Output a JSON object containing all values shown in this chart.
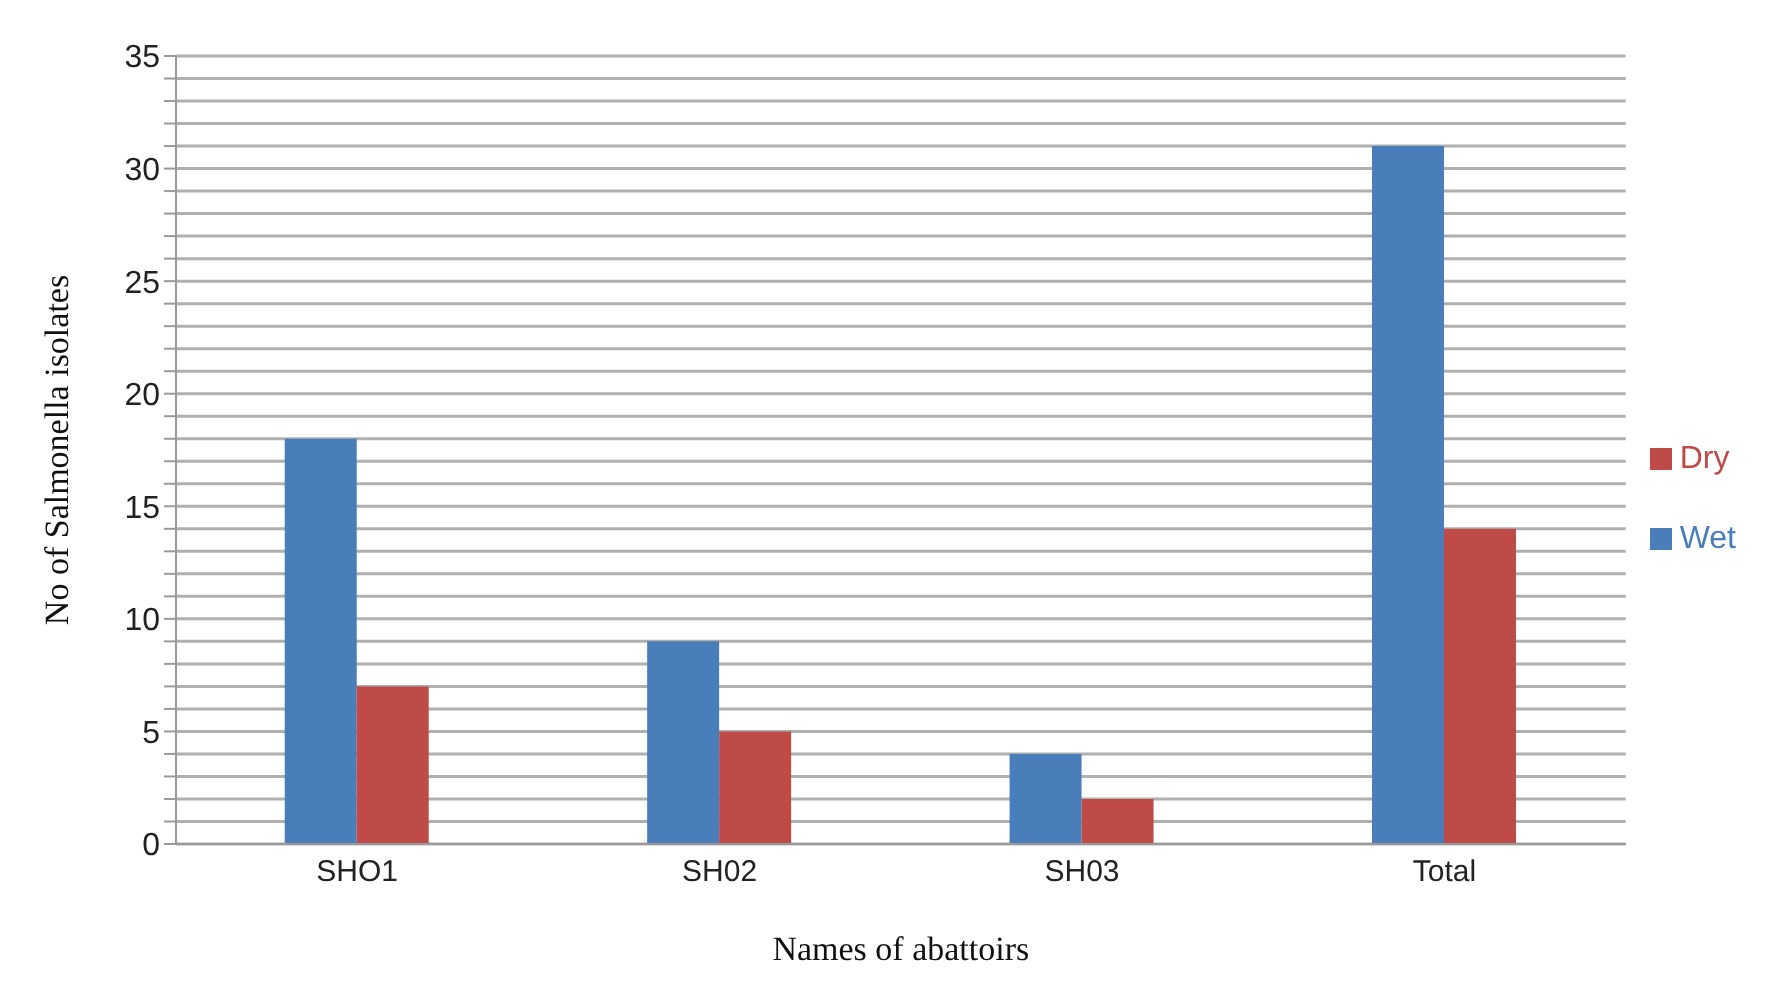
{
  "chart_data": {
    "type": "bar",
    "xlabel": "Names of abattoirs",
    "ylabel": "No of Salmonella isolates",
    "categories": [
      "SHO1",
      "SH02",
      "SH03",
      "Total"
    ],
    "series": [
      {
        "name": "Wet",
        "color": "#4a7ebb",
        "values": [
          18,
          9,
          4,
          31
        ]
      },
      {
        "name": "Dry",
        "color": "#be4b48",
        "values": [
          7,
          5,
          2,
          14
        ]
      }
    ],
    "ylim": [
      0,
      35
    ],
    "yticks": [
      0,
      {
        "value": 1,
        "label": null
      },
      {
        "value": 2,
        "label": null
      },
      {
        "value": 3,
        "label": null
      },
      {
        "value": 4,
        "label": null
      },
      5,
      {
        "value": 6,
        "label": null
      },
      {
        "value": 7,
        "label": null
      },
      {
        "value": 8,
        "label": null
      },
      {
        "value": 9,
        "label": null
      },
      10,
      {
        "value": 11,
        "label": null
      },
      {
        "value": 12,
        "label": null
      },
      {
        "value": 13,
        "label": null
      },
      {
        "value": 14,
        "label": null
      },
      15,
      {
        "value": 16,
        "label": null
      },
      {
        "value": 17,
        "label": null
      },
      {
        "value": 18,
        "label": null
      },
      {
        "value": 19,
        "label": null
      },
      20,
      {
        "value": 21,
        "label": null
      },
      {
        "value": 22,
        "label": null
      },
      {
        "value": 23,
        "label": null
      },
      {
        "value": 24,
        "label": null
      },
      25,
      {
        "value": 26,
        "label": null
      },
      {
        "value": 27,
        "label": null
      },
      {
        "value": 28,
        "label": null
      },
      {
        "value": 29,
        "label": null
      },
      30,
      {
        "value": 31,
        "label": null
      },
      {
        "value": 32,
        "label": null
      },
      {
        "value": 33,
        "label": null
      },
      {
        "value": 34,
        "label": null
      },
      35
    ],
    "grid": "y",
    "legend": "right"
  }
}
